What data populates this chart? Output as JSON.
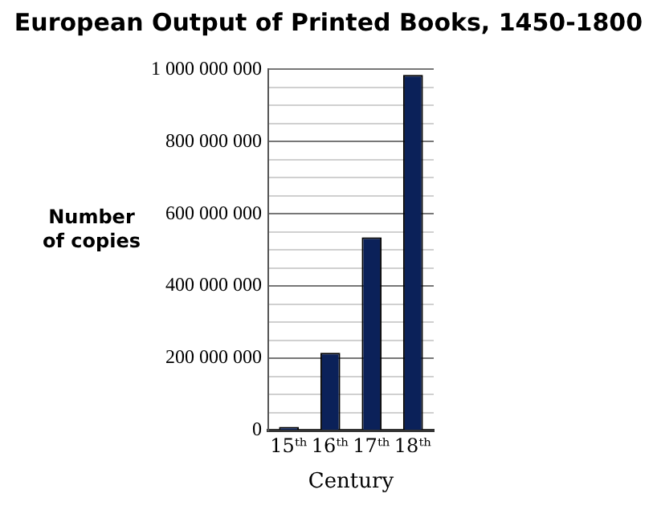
{
  "chart_data": {
    "type": "bar",
    "title": "European Output of Printed Books, 1450-1800",
    "xlabel": "Century",
    "ylabel": "Number of copies",
    "categories": [
      "15ᵗʰ",
      "16ᵗʰ",
      "17ᵗʰ",
      "18ᵗʰ"
    ],
    "values": [
      10000000,
      215000000,
      535000000,
      985000000
    ],
    "color": "#0b2159",
    "ylim": [
      0,
      1000000000
    ],
    "yticks": [
      {
        "value": 0,
        "label": "0"
      },
      {
        "value": 50000000,
        "label": null
      },
      {
        "value": 100000000,
        "label": null
      },
      {
        "value": 150000000,
        "label": null
      },
      {
        "value": 200000000,
        "label": "200 000 000"
      },
      {
        "value": 250000000,
        "label": null
      },
      {
        "value": 300000000,
        "label": null
      },
      {
        "value": 350000000,
        "label": null
      },
      {
        "value": 400000000,
        "label": "400 000 000"
      },
      {
        "value": 450000000,
        "label": null
      },
      {
        "value": 500000000,
        "label": null
      },
      {
        "value": 550000000,
        "label": null
      },
      {
        "value": 600000000,
        "label": "600 000 000"
      },
      {
        "value": 650000000,
        "label": null
      },
      {
        "value": 700000000,
        "label": null
      },
      {
        "value": 750000000,
        "label": null
      },
      {
        "value": 800000000,
        "label": "800 000 000"
      },
      {
        "value": 850000000,
        "label": null
      },
      {
        "value": 900000000,
        "label": null
      },
      {
        "value": 950000000,
        "label": null
      },
      {
        "value": 1000000000,
        "label": "1 000 000 000"
      }
    ],
    "grid": "y"
  }
}
